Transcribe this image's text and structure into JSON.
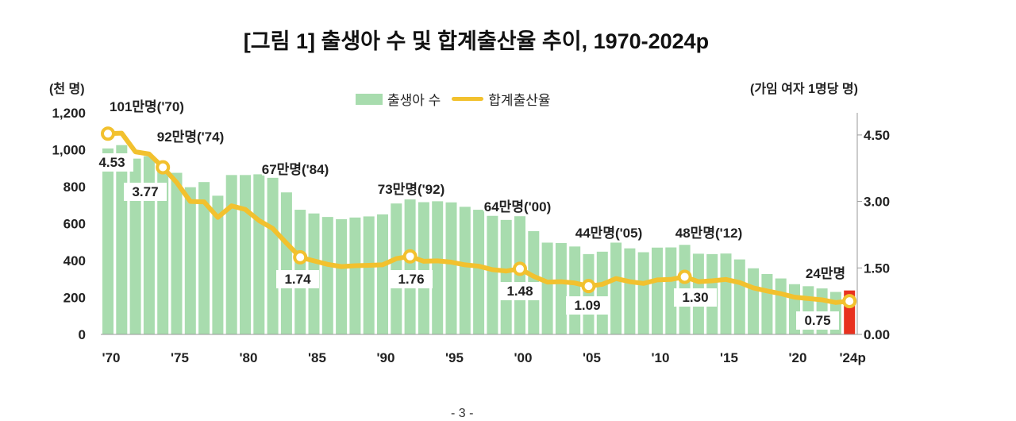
{
  "chart_data": {
    "type": "bar+line",
    "title": "[그림 1] 출생아 수 및 합계출산율 추이, 1970-2024p",
    "left_unit": "(천 명)",
    "right_unit": "(가임 여자 1명당 명)",
    "legend": [
      {
        "name": "출생아 수",
        "color": "#a8dcae",
        "type": "bar"
      },
      {
        "name": "합계출산율",
        "color": "#f2c12e",
        "type": "line"
      }
    ],
    "legend_placement": "top-center",
    "years": [
      1970,
      1971,
      1972,
      1973,
      1974,
      1975,
      1976,
      1977,
      1978,
      1979,
      1980,
      1981,
      1982,
      1983,
      1984,
      1985,
      1986,
      1987,
      1988,
      1989,
      1990,
      1991,
      1992,
      1993,
      1994,
      1995,
      1996,
      1997,
      1998,
      1999,
      2000,
      2001,
      2002,
      2003,
      2004,
      2005,
      2006,
      2007,
      2008,
      2009,
      2010,
      2011,
      2012,
      2013,
      2014,
      2015,
      2016,
      2017,
      2018,
      2019,
      2020,
      2021,
      2022,
      2023,
      2024
    ],
    "x_tick_labels": [
      "'70",
      "'75",
      "'80",
      "'85",
      "'90",
      "'95",
      "'00",
      "'05",
      "'10",
      "'15",
      "'20",
      "'24p"
    ],
    "x_tick_years": [
      1970,
      1975,
      1980,
      1985,
      1990,
      1995,
      2000,
      2005,
      2010,
      2015,
      2020,
      2024
    ],
    "series": [
      {
        "name": "출생아 수",
        "axis": "left",
        "values": [
          1007,
          1025,
          952,
          965,
          922,
          875,
          797,
          825,
          751,
          863,
          863,
          867,
          848,
          769,
          675,
          655,
          636,
          624,
          633,
          639,
          650,
          709,
          731,
          716,
          721,
          715,
          691,
          675,
          642,
          620,
          640,
          559,
          497,
          495,
          476,
          435,
          448,
          497,
          466,
          445,
          470,
          471,
          485,
          437,
          435,
          438,
          406,
          358,
          327,
          303,
          272,
          261,
          249,
          230,
          238
        ]
      },
      {
        "name": "합계출산율",
        "axis": "right",
        "values": [
          4.53,
          4.54,
          4.12,
          4.07,
          3.77,
          3.43,
          3.0,
          2.99,
          2.64,
          2.9,
          2.82,
          2.57,
          2.39,
          2.06,
          1.74,
          1.66,
          1.58,
          1.53,
          1.55,
          1.56,
          1.57,
          1.71,
          1.76,
          1.65,
          1.66,
          1.63,
          1.57,
          1.54,
          1.46,
          1.43,
          1.48,
          1.31,
          1.18,
          1.19,
          1.16,
          1.09,
          1.13,
          1.26,
          1.19,
          1.15,
          1.23,
          1.24,
          1.3,
          1.19,
          1.21,
          1.24,
          1.17,
          1.05,
          0.98,
          0.92,
          0.84,
          0.81,
          0.78,
          0.72,
          0.75
        ]
      }
    ],
    "highlight_bar": {
      "year": 2024,
      "color": "#e8311f"
    },
    "left_axis": {
      "range": [
        0,
        1200
      ],
      "ticks": [
        "0",
        "200",
        "400",
        "600",
        "800",
        "1,000",
        "1,200"
      ]
    },
    "right_axis": {
      "range": [
        0,
        5
      ],
      "ticks": [
        "0.00",
        "1.50",
        "3.00",
        "4.50"
      ]
    },
    "annotations": [
      {
        "year": 1970,
        "births": "101만명('70)",
        "tfr": "4.53"
      },
      {
        "year": 1974,
        "births": "92만명('74)",
        "tfr": "3.77"
      },
      {
        "year": 1984,
        "births": "67만명('84)",
        "tfr": "1.74"
      },
      {
        "year": 1992,
        "births": "73만명('92)",
        "tfr": "1.76"
      },
      {
        "year": 2000,
        "births": "64만명('00)",
        "tfr": "1.48"
      },
      {
        "year": 2005,
        "births": "44만명('05)",
        "tfr": "1.09"
      },
      {
        "year": 2012,
        "births": "48만명('12)",
        "tfr": "1.30"
      },
      {
        "year": 2024,
        "births": "24만명",
        "tfr": "0.75"
      }
    ]
  },
  "page_number": "- 3 -"
}
